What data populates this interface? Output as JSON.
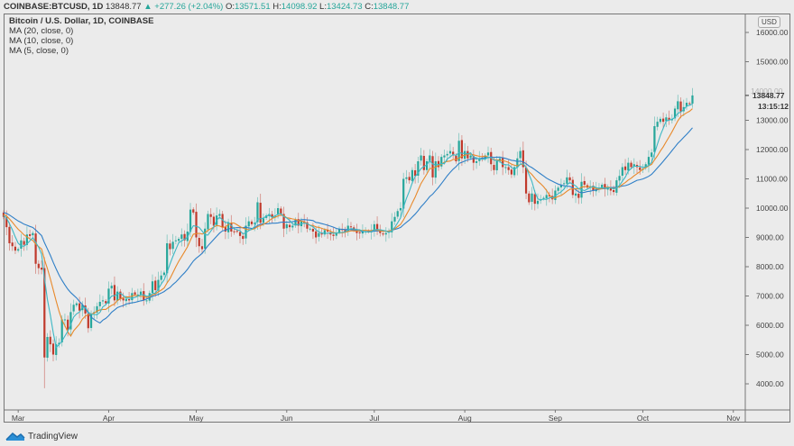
{
  "header": {
    "symbol": "COINBASE:BTCUSD, 1D",
    "last": "13848.77",
    "change": "+277.26 (+2.04%)",
    "o_label": "O:",
    "o": "13571.51",
    "h_label": "H:",
    "h": "14098.92",
    "l_label": "L:",
    "l": "13424.73",
    "c_label": "C:",
    "c": "13848.77"
  },
  "legend": {
    "title": "Bitcoin / U.S. Dollar, 1D, COINBASE",
    "ma20": "MA (20, close, 0)",
    "ma10": "MA (10, close, 0)",
    "ma5": "MA (5, close, 0)"
  },
  "axis": {
    "currency": "USD",
    "last_price_label": "13848.77",
    "countdown": "13:15:12"
  },
  "footer": {
    "brand": "TradingView"
  },
  "colors": {
    "up": "#26a69a",
    "down": "#c0392b",
    "ma5": "#3cb7c4",
    "ma10": "#e8892b",
    "ma20": "#2f7fc7",
    "bg": "#ebebeb"
  },
  "chart_data": {
    "type": "candlestick",
    "title": "Bitcoin / U.S. Dollar, 1D, COINBASE",
    "xlabel": "",
    "ylabel": "USD",
    "ylim": [
      3500,
      16500
    ],
    "yticks": [
      4000,
      5000,
      6000,
      7000,
      8000,
      9000,
      10000,
      11000,
      12000,
      13000,
      14000,
      15000,
      16000
    ],
    "ytick_labels": [
      "4000.00",
      "5000.00",
      "6000.00",
      "7000.00",
      "8000.00",
      "9000.00",
      "10000.00",
      "11000.00",
      "12000.00",
      "13000.00",
      "14000.00",
      "15000.00",
      "16000.00"
    ],
    "months": [
      {
        "label": "Mar",
        "day": 5
      },
      {
        "label": "Apr",
        "day": 36
      },
      {
        "label": "May",
        "day": 66
      },
      {
        "label": "Jun",
        "day": 97
      },
      {
        "label": "Jul",
        "day": 127
      },
      {
        "label": "Aug",
        "day": 158
      },
      {
        "label": "Sep",
        "day": 189
      },
      {
        "label": "Oct",
        "day": 219
      },
      {
        "label": "Nov",
        "day": 250
      }
    ],
    "series_names": [
      "BTCUSD",
      "MA (20, close, 0)",
      "MA (10, close, 0)",
      "MA (5, close, 0)"
    ],
    "first_date": "2020-02-25",
    "closes": [
      9700,
      9350,
      8800,
      8700,
      8550,
      8600,
      8900,
      8750,
      9100,
      9050,
      9150,
      8100,
      7950,
      7900,
      4900,
      5600,
      5350,
      5000,
      5350,
      5400,
      6200,
      6200,
      5850,
      6450,
      6700,
      6750,
      6500,
      6700,
      6400,
      5900,
      6400,
      6450,
      6650,
      6800,
      6850,
      6750,
      7250,
      7350,
      6850,
      7150,
      6900,
      6850,
      6900,
      6850,
      7100,
      7050,
      7050,
      7150,
      6850,
      6850,
      7100,
      7500,
      7200,
      7550,
      7700,
      7800,
      8800,
      8600,
      8850,
      8900,
      8950,
      9100,
      8900,
      9200,
      9950,
      9850,
      9000,
      8700,
      8600,
      9300,
      9800,
      9700,
      9400,
      9750,
      9800,
      9350,
      9200,
      9500,
      9200,
      9200,
      9200,
      9050,
      8950,
      9400,
      9550,
      9450,
      9500,
      10200,
      9500,
      9650,
      9750,
      9800,
      9700,
      9750,
      10000,
      9800,
      9300,
      9450,
      9350,
      9400,
      9600,
      9400,
      9550,
      9500,
      9300,
      9300,
      9200,
      9000,
      9150,
      9100,
      9250,
      9200,
      9100,
      9050,
      9150,
      9300,
      9250,
      9200,
      9400,
      9350,
      9250,
      9150,
      9150,
      9200,
      9200,
      9200,
      9250,
      9450,
      9250,
      9150,
      9100,
      9150,
      9200,
      9550,
      9700,
      9900,
      10000,
      11000,
      11050,
      10950,
      11300,
      11100,
      11600,
      11800,
      11300,
      11600,
      11800,
      11050,
      11600,
      11400,
      11750,
      11800,
      11850,
      11950,
      11800,
      11600,
      12300,
      11700,
      11950,
      11700,
      11800,
      11550,
      11600,
      11700,
      11700,
      11800,
      11900,
      11500,
      11300,
      11600,
      11700,
      11400,
      11400,
      11300,
      11150,
      11400,
      11700,
      11950,
      11400,
      10500,
      10200,
      10500,
      10150,
      10250,
      10300,
      10350,
      10450,
      10400,
      10300,
      10600,
      10700,
      10800,
      10850,
      11050,
      10950,
      10450,
      10500,
      10350,
      10900,
      10800,
      10700,
      10750,
      10600,
      10650,
      10700,
      10800,
      10650,
      10700,
      10600,
      10550,
      10950,
      11100,
      11400,
      11300,
      11550,
      11400,
      11500,
      11400,
      11300,
      11350,
      11500,
      11750,
      11900,
      12800,
      12950,
      13050,
      12950,
      13100,
      13000,
      13050,
      13400,
      13650,
      13300,
      13450,
      13600,
      13571,
      13849
    ]
  }
}
